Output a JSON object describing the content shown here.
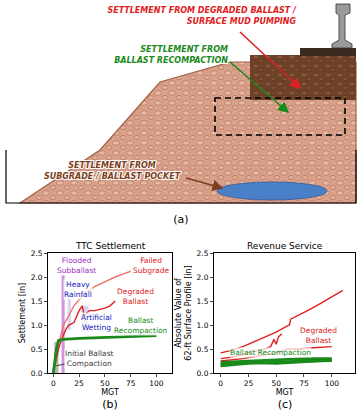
{
  "panel_labels": [
    "(a)",
    "(b)",
    "(c)"
  ],
  "diagram": {
    "labels": [
      {
        "lines": [
          "SETTLEMENT FROM DEGRADED BALLAST /",
          "SURFACE MUD PUMPING"
        ],
        "color": "#e02020"
      },
      {
        "lines": [
          "SETTLEMENT FROM",
          "BALLAST RECOMPACTION"
        ],
        "color": "#1a8a1a"
      },
      {
        "lines": [
          "SETTLEMENT FROM",
          "SUBGRADE / BALLAST POCKET"
        ],
        "color": "#7a4020"
      }
    ]
  },
  "chart_data": [
    {
      "type": "line",
      "title": "TTC Settlement",
      "xlabel": "MGT",
      "ylabel": [
        "Settlement [in]"
      ],
      "xlim": [
        -5,
        115
      ],
      "ylim": [
        0,
        2.5
      ],
      "xticks": [
        0,
        25,
        50,
        75,
        100
      ],
      "yticks": [
        {
          "value": 0,
          "label": "0.0"
        },
        0.5,
        {
          "value": 1,
          "label": "1.0"
        },
        1.5,
        {
          "value": 2,
          "label": "2.0"
        },
        2.5
      ],
      "grid": false,
      "bands": [
        {
          "x0": 1,
          "x1": 5,
          "y0": 0,
          "y1": 0.65,
          "color": "#808080"
        },
        {
          "x0": 8,
          "x1": 11,
          "y0": 0,
          "y1": 2.05,
          "color": "#b04fc8"
        },
        {
          "x0": 14,
          "x1": 17,
          "y0": 0.9,
          "y1": 1.65,
          "color": "#b8b8f0"
        },
        {
          "x0": 27,
          "x1": 34,
          "y0": 0.85,
          "y1": 1.4,
          "color": "#b8b8f0"
        }
      ],
      "series": [
        {
          "color": "#f07070",
          "line_style": "solid",
          "x": [
            0,
            5,
            10,
            20,
            30,
            40,
            50,
            60,
            70,
            75
          ],
          "values": [
            0,
            0.6,
            1.0,
            1.4,
            1.65,
            1.8,
            1.9,
            2.0,
            2.08,
            2.12
          ]
        },
        {
          "color": "#e02020",
          "line_style": "solid",
          "x": [
            0,
            5,
            8,
            12,
            15,
            20,
            25,
            28,
            30,
            35,
            40,
            50,
            55,
            60
          ],
          "values": [
            0,
            0.5,
            0.7,
            0.9,
            1.0,
            1.05,
            1.3,
            1.4,
            1.2,
            1.3,
            1.3,
            1.35,
            1.4,
            1.5
          ]
        },
        {
          "color": "#606060",
          "line_style": "solid",
          "x": [
            0,
            2,
            4
          ],
          "values": [
            0,
            0.4,
            0.62
          ]
        },
        {
          "color": "#1a8a1a",
          "line_style": "thick",
          "x": [
            0,
            3,
            5,
            10,
            25,
            50,
            75,
            100
          ],
          "values": [
            0,
            0.5,
            0.68,
            0.7,
            0.72,
            0.74,
            0.76,
            0.78
          ]
        }
      ],
      "annotations": [
        {
          "lines": [
            "Failed",
            "Subgrade"
          ],
          "x": 95,
          "y": 2.25,
          "color": "#e02020"
        },
        {
          "lines": [
            "Flooded",
            "Subballast"
          ],
          "x": 22,
          "y": 2.25,
          "color": "#a030c0"
        },
        {
          "lines": [
            "Heavy",
            "Rainfall"
          ],
          "x": 24,
          "y": 1.75,
          "color": "#2020c0"
        },
        {
          "lines": [
            "Artificial",
            "Wetting"
          ],
          "x": 42,
          "y": 1.05,
          "color": "#2020c0"
        },
        {
          "lines": [
            "Degraded",
            "Ballast"
          ],
          "x": 80,
          "y": 1.6,
          "color": "#e02020"
        },
        {
          "lines": [
            "Ballast",
            "Recompaction"
          ],
          "x": 85,
          "y": 0.98,
          "color": "#1a8a1a"
        },
        {
          "lines": [
            "Initial Ballast",
            "Compaction"
          ],
          "x": 35,
          "y": 0.3,
          "color": "#404040",
          "arrow_to": [
            3,
            0.15
          ]
        }
      ]
    },
    {
      "type": "line",
      "title": "Revenue Service",
      "xlabel": "MGT",
      "ylabel": [
        "Absolute Value of",
        "62-ft Surface Profile [in]"
      ],
      "xlim": [
        -6,
        121
      ],
      "ylim": [
        0,
        2.5
      ],
      "xticks": [
        0,
        25,
        50,
        75,
        100
      ],
      "yticks": [
        {
          "value": 0,
          "label": "0.0"
        },
        0.5,
        {
          "value": 1,
          "label": "1.0"
        },
        1.5,
        {
          "value": 2,
          "label": "2.0"
        },
        2.5
      ],
      "grid": false,
      "series": [
        {
          "color": "#e02020",
          "line_style": "solid",
          "x": [
            0,
            10,
            20,
            30,
            40,
            50,
            60,
            62,
            63,
            70,
            80,
            90,
            100,
            110
          ],
          "values": [
            0.42,
            0.47,
            0.55,
            0.65,
            0.75,
            0.85,
            0.98,
            1.0,
            1.12,
            1.2,
            1.32,
            1.45,
            1.58,
            1.72
          ]
        },
        {
          "color": "#e02020",
          "line_style": "solid",
          "x": [
            0,
            10,
            20,
            30,
            40,
            45,
            48,
            50,
            52,
            55
          ],
          "values": [
            0.3,
            0.33,
            0.38,
            0.45,
            0.5,
            0.55,
            0.7,
            0.6,
            0.75,
            0.82
          ]
        },
        {
          "color": "#e02020",
          "line_style": "solid",
          "x": [
            0,
            20,
            40,
            55,
            60,
            70,
            80,
            90,
            100
          ],
          "values": [
            0.25,
            0.3,
            0.38,
            0.45,
            0.5,
            0.5,
            0.52,
            0.54,
            0.55
          ]
        },
        {
          "color": "#1a8a1a",
          "line_style": "thick",
          "x": [
            0,
            25,
            50,
            75,
            100
          ],
          "values": [
            0.22,
            0.25,
            0.27,
            0.3,
            0.3
          ]
        },
        {
          "color": "#1a8a1a",
          "line_style": "thick",
          "x": [
            0,
            25,
            50,
            75,
            100
          ],
          "values": [
            0.15,
            0.2,
            0.22,
            0.25,
            0.26
          ]
        },
        {
          "color": "#1a8a1a",
          "line_style": "thick",
          "x": [
            0,
            25,
            50,
            75,
            100
          ],
          "values": [
            0.18,
            0.22,
            0.2,
            0.24,
            0.27
          ]
        }
      ],
      "annotations": [
        {
          "lines": [
            "Degraded",
            "Ballast"
          ],
          "x": 88,
          "y": 0.78,
          "color": "#e02020"
        },
        {
          "lines": [
            "Ballast Recompaction"
          ],
          "x": 45,
          "y": 0.42,
          "color": "#1a8a1a"
        }
      ]
    }
  ]
}
